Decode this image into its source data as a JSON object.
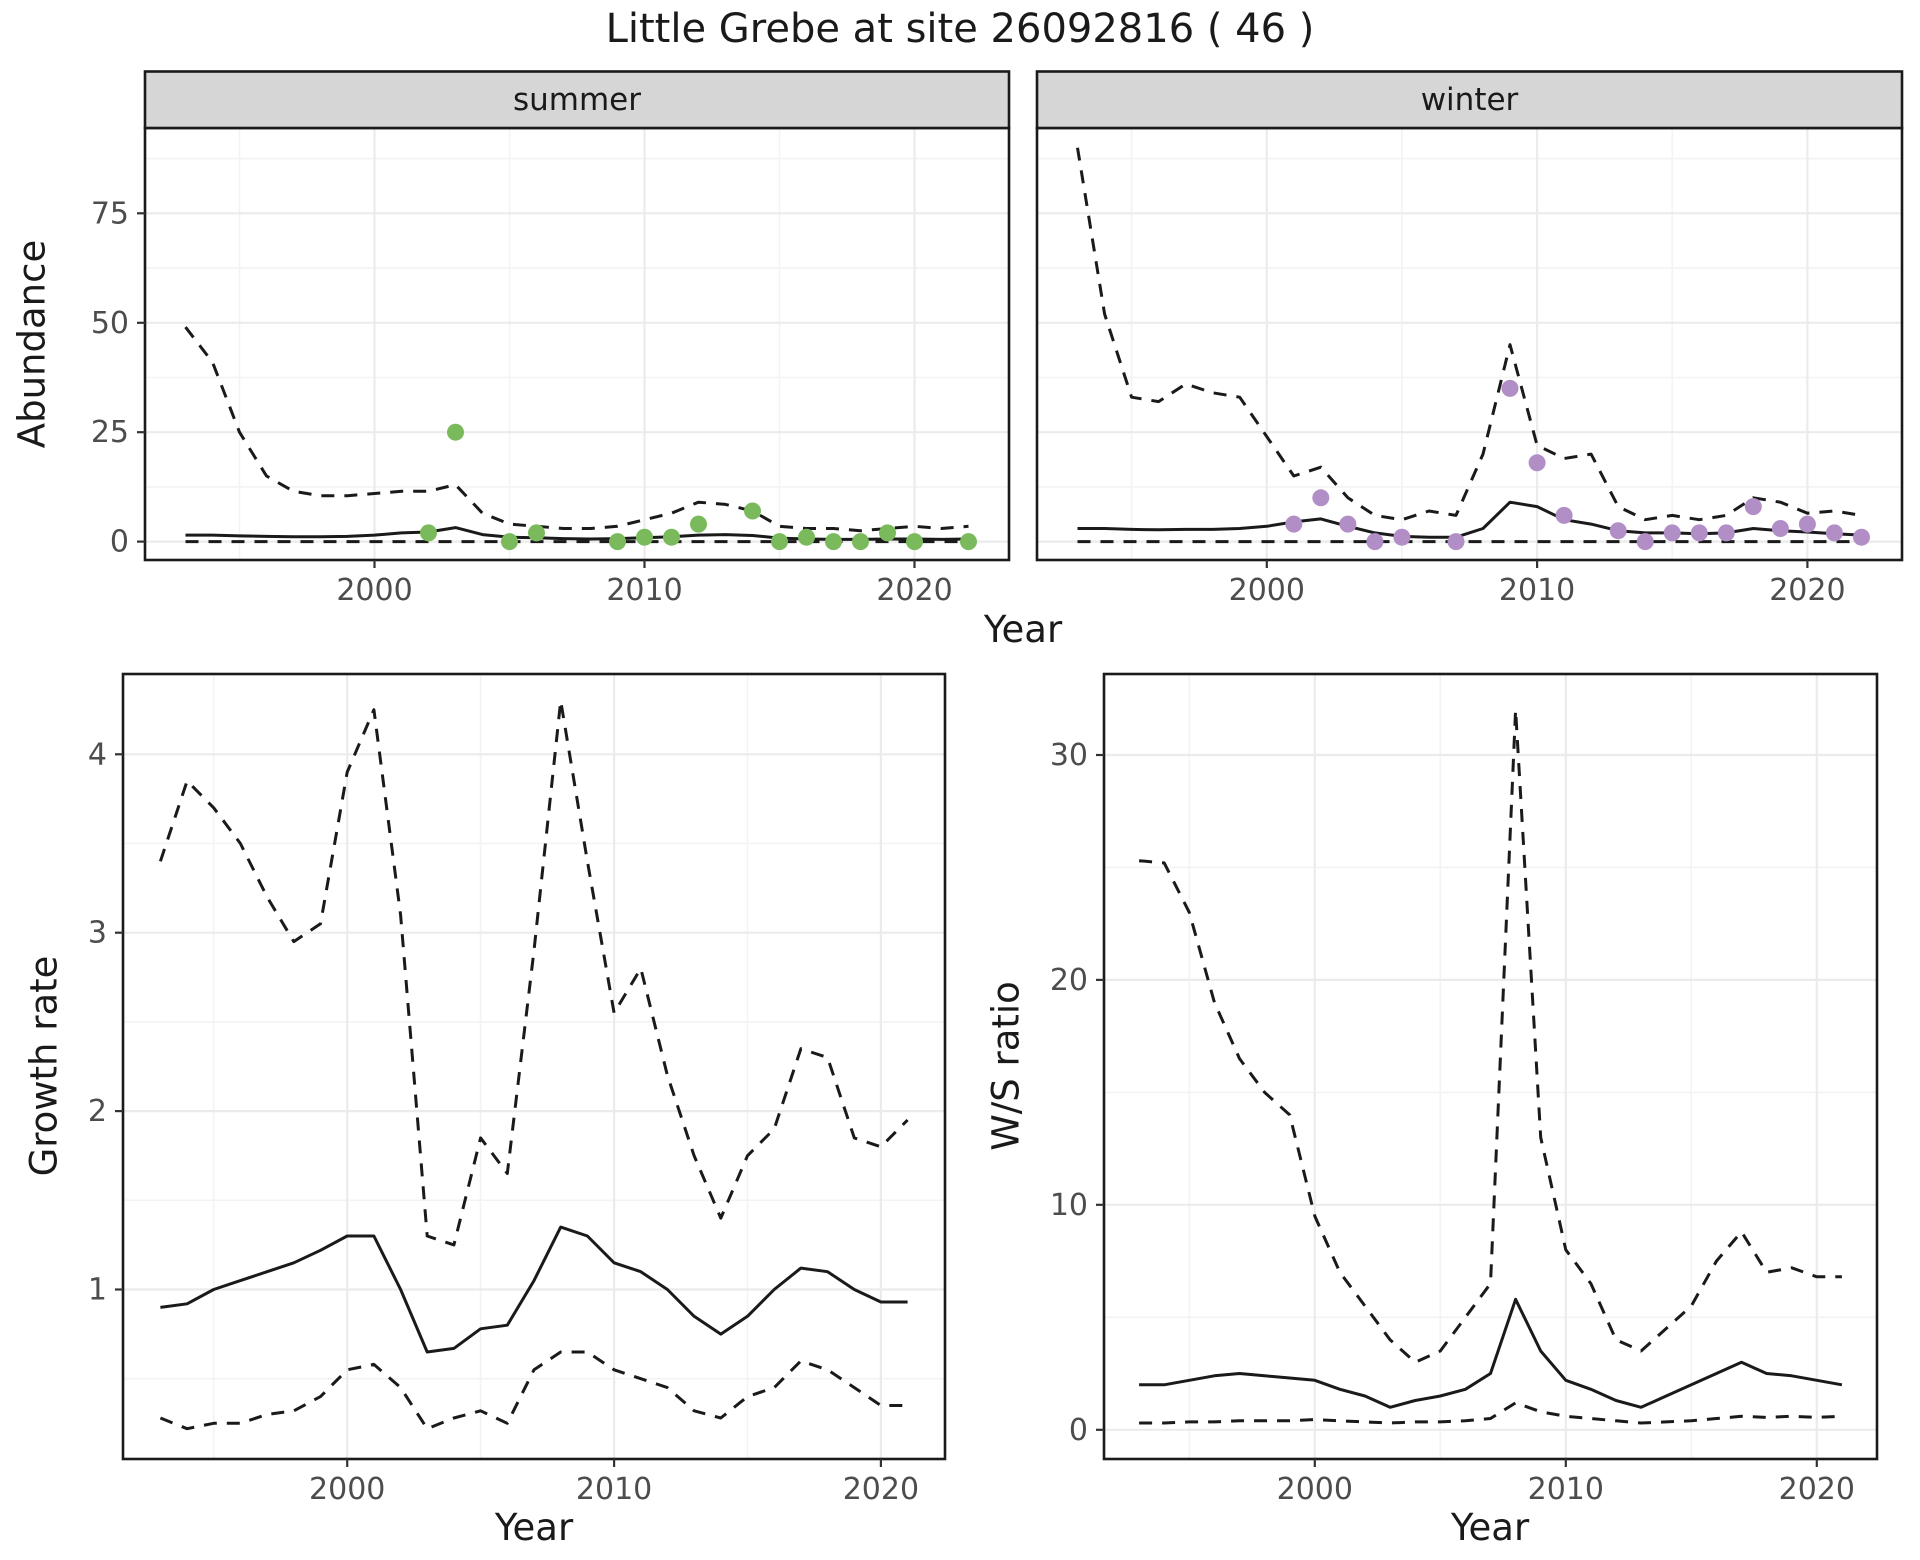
{
  "title": "Little Grebe at site 26092816 ( 46 )",
  "axis": {
    "abundance_label": "Abundance",
    "growth_label": "Growth rate",
    "ws_label": "W/S ratio",
    "top_x_label": "Year",
    "bottom_left_x_label": "Year",
    "bottom_right_x_label": "Year"
  },
  "facets": {
    "summer": "summer",
    "winter": "winter"
  },
  "colors": {
    "summer_points": "#7aba5c",
    "winter_points": "#b18fc6",
    "line": "#1a1a1a",
    "strip_bg": "#d6d6d6",
    "grid_major": "#ebebeb",
    "grid_minor": "#f3f3f3",
    "tick_text": "#4d4d4d"
  },
  "chart_data": [
    {
      "id": "abundance_summer",
      "type": "line",
      "facet_label": "summer",
      "xlabel": "Year",
      "ylabel": "Abundance",
      "xlim": [
        1991.5,
        2023.5
      ],
      "ylim": [
        -4.2,
        94.5
      ],
      "xticks": [
        2000,
        2010,
        2020
      ],
      "yticks": [
        0,
        25,
        50,
        75
      ],
      "grid": true,
      "legend": "none",
      "x": [
        1993,
        1994,
        1995,
        1996,
        1997,
        1998,
        1999,
        2000,
        2001,
        2002,
        2003,
        2004,
        2005,
        2006,
        2007,
        2008,
        2009,
        2010,
        2011,
        2012,
        2013,
        2014,
        2015,
        2016,
        2017,
        2018,
        2019,
        2020,
        2021,
        2022
      ],
      "series": [
        {
          "name": "upper_95ci",
          "style": "dashed",
          "values": [
            49,
            41,
            25,
            15,
            11.5,
            10.5,
            10.5,
            11,
            11.5,
            11.5,
            13,
            6.5,
            4,
            3.5,
            3,
            3,
            3.5,
            5,
            6.5,
            9,
            8.5,
            7,
            3.5,
            3,
            3,
            2.5,
            3,
            3.5,
            3,
            3.5
          ]
        },
        {
          "name": "estimate",
          "style": "solid",
          "values": [
            1.5,
            1.5,
            1.3,
            1.2,
            1.1,
            1.1,
            1.2,
            1.5,
            2,
            2.2,
            3.2,
            1.6,
            1,
            0.9,
            0.7,
            0.6,
            0.7,
            0.9,
            1.1,
            1.5,
            1.6,
            1.4,
            0.8,
            0.6,
            0.5,
            0.5,
            0.6,
            0.6,
            0.5,
            0.6
          ]
        },
        {
          "name": "lower_95ci",
          "style": "dashed",
          "values": [
            0,
            0,
            0,
            0,
            0,
            0,
            0,
            0,
            0,
            0,
            0,
            0,
            0,
            0,
            0,
            0,
            0,
            0,
            0,
            0,
            0,
            0,
            0,
            0,
            0,
            0,
            0,
            0,
            0,
            0
          ]
        }
      ],
      "points": {
        "name": "observed_counts",
        "color": "#7aba5c",
        "x": [
          2002,
          2003,
          2005,
          2006,
          2009,
          2010,
          2011,
          2012,
          2014,
          2015,
          2016,
          2017,
          2018,
          2019,
          2020,
          2022
        ],
        "y": [
          2,
          25,
          0,
          2,
          0,
          1,
          1,
          4,
          7,
          0,
          1,
          0,
          0,
          2,
          0,
          0
        ]
      }
    },
    {
      "id": "abundance_winter",
      "type": "line",
      "facet_label": "winter",
      "xlabel": "Year",
      "ylabel": "Abundance",
      "xlim": [
        1991.5,
        2023.5
      ],
      "ylim": [
        -4.2,
        94.5
      ],
      "xticks": [
        2000,
        2010,
        2020
      ],
      "yticks": [
        0,
        25,
        50,
        75
      ],
      "grid": true,
      "legend": "none",
      "x": [
        1993,
        1994,
        1995,
        1996,
        1997,
        1998,
        1999,
        2000,
        2001,
        2002,
        2003,
        2004,
        2005,
        2006,
        2007,
        2008,
        2009,
        2010,
        2011,
        2012,
        2013,
        2014,
        2015,
        2016,
        2017,
        2018,
        2019,
        2020,
        2021,
        2022
      ],
      "series": [
        {
          "name": "upper_95ci",
          "style": "dashed",
          "values": [
            90,
            52,
            33,
            32,
            36,
            34,
            33,
            24,
            15,
            17,
            10,
            6,
            5,
            7,
            6,
            20,
            45,
            22,
            19,
            20,
            8,
            5,
            6,
            5,
            6,
            10,
            9,
            6.5,
            7,
            6
          ]
        },
        {
          "name": "estimate",
          "style": "solid",
          "values": [
            3,
            3,
            2.8,
            2.7,
            2.8,
            2.8,
            3,
            3.5,
            4.5,
            5.2,
            3.5,
            2,
            1.2,
            1,
            1,
            3,
            9,
            8,
            5,
            4,
            2.5,
            2,
            2,
            1.8,
            2,
            3,
            2.5,
            2.2,
            1.8,
            1.5
          ]
        },
        {
          "name": "lower_95ci",
          "style": "dashed",
          "values": [
            0,
            0,
            0,
            0,
            0,
            0,
            0,
            0,
            0,
            0,
            0,
            0,
            0,
            0,
            0,
            0,
            0,
            0,
            0,
            0,
            0,
            0,
            0,
            0,
            0,
            0,
            0,
            0,
            0,
            0
          ]
        }
      ],
      "points": {
        "name": "observed_counts",
        "color": "#b18fc6",
        "x": [
          2001,
          2002,
          2003,
          2004,
          2005,
          2007,
          2009,
          2010,
          2011,
          2013,
          2014,
          2015,
          2016,
          2017,
          2018,
          2019,
          2020,
          2021,
          2022
        ],
        "y": [
          4,
          10,
          4,
          0,
          1,
          0,
          35,
          18,
          6,
          2.5,
          0,
          2,
          2,
          2,
          8,
          3,
          4,
          2,
          1
        ]
      }
    },
    {
      "id": "growth_rate",
      "type": "line",
      "facet_label": null,
      "xlabel": "Year",
      "ylabel": "Growth rate",
      "xlim": [
        1991.6,
        2022.4
      ],
      "ylim": [
        0.05,
        4.45
      ],
      "xticks": [
        2000,
        2010,
        2020
      ],
      "yticks": [
        1,
        2,
        3,
        4
      ],
      "grid": true,
      "legend": "none",
      "x": [
        1993,
        1994,
        1995,
        1996,
        1997,
        1998,
        1999,
        2000,
        2001,
        2002,
        2003,
        2004,
        2005,
        2006,
        2007,
        2008,
        2009,
        2010,
        2011,
        2012,
        2013,
        2014,
        2015,
        2016,
        2017,
        2018,
        2019,
        2020,
        2021
      ],
      "series": [
        {
          "name": "upper_95ci",
          "style": "dashed",
          "values": [
            3.4,
            3.85,
            3.7,
            3.5,
            3.2,
            2.95,
            3.05,
            3.9,
            4.25,
            3.1,
            1.3,
            1.25,
            1.85,
            1.65,
            2.9,
            4.3,
            3.4,
            2.55,
            2.8,
            2.2,
            1.75,
            1.4,
            1.75,
            1.9,
            2.35,
            2.3,
            1.85,
            1.8,
            1.95
          ]
        },
        {
          "name": "estimate",
          "style": "solid",
          "values": [
            0.9,
            0.92,
            1,
            1.05,
            1.1,
            1.15,
            1.22,
            1.3,
            1.3,
            1,
            0.65,
            0.67,
            0.78,
            0.8,
            1.05,
            1.35,
            1.3,
            1.15,
            1.1,
            1,
            0.85,
            0.75,
            0.85,
            1,
            1.12,
            1.1,
            1,
            0.93,
            0.93
          ]
        },
        {
          "name": "lower_95ci",
          "style": "dashed",
          "values": [
            0.28,
            0.22,
            0.25,
            0.25,
            0.3,
            0.32,
            0.4,
            0.55,
            0.58,
            0.45,
            0.22,
            0.28,
            0.32,
            0.25,
            0.55,
            0.65,
            0.65,
            0.55,
            0.5,
            0.45,
            0.32,
            0.28,
            0.4,
            0.45,
            0.6,
            0.55,
            0.45,
            0.35,
            0.35
          ]
        }
      ],
      "points": null
    },
    {
      "id": "ws_ratio",
      "type": "line",
      "facet_label": null,
      "xlabel": "Year",
      "ylabel": "W/S ratio",
      "xlim": [
        1991.6,
        2022.4
      ],
      "ylim": [
        -1.3,
        33.6
      ],
      "xticks": [
        2000,
        2010,
        2020
      ],
      "yticks": [
        0,
        10,
        20,
        30
      ],
      "grid": true,
      "legend": "none",
      "x": [
        1993,
        1994,
        1995,
        1996,
        1997,
        1998,
        1999,
        2000,
        2001,
        2002,
        2003,
        2004,
        2005,
        2006,
        2007,
        2008,
        2009,
        2010,
        2011,
        2012,
        2013,
        2014,
        2015,
        2016,
        2017,
        2018,
        2019,
        2020,
        2021
      ],
      "series": [
        {
          "name": "upper_95ci",
          "style": "dashed",
          "values": [
            25.3,
            25.2,
            23,
            19,
            16.5,
            15,
            14,
            9.5,
            7,
            5.5,
            4,
            3,
            3.5,
            5,
            6.5,
            32,
            13,
            8,
            6.5,
            4,
            3.5,
            4.5,
            5.5,
            7.5,
            8.8,
            7,
            7.2,
            6.8,
            6.8
          ]
        },
        {
          "name": "estimate",
          "style": "solid",
          "values": [
            2,
            2,
            2.2,
            2.4,
            2.5,
            2.4,
            2.3,
            2.2,
            1.8,
            1.5,
            1,
            1.3,
            1.5,
            1.8,
            2.5,
            5.8,
            3.5,
            2.2,
            1.8,
            1.3,
            1,
            1.5,
            2,
            2.5,
            3,
            2.5,
            2.4,
            2.2,
            2
          ]
        },
        {
          "name": "lower_95ci",
          "style": "dashed",
          "values": [
            0.3,
            0.3,
            0.35,
            0.35,
            0.4,
            0.4,
            0.4,
            0.45,
            0.4,
            0.35,
            0.3,
            0.35,
            0.35,
            0.4,
            0.5,
            1.2,
            0.8,
            0.6,
            0.5,
            0.4,
            0.3,
            0.35,
            0.4,
            0.5,
            0.6,
            0.55,
            0.6,
            0.55,
            0.6
          ]
        }
      ],
      "points": null
    }
  ]
}
